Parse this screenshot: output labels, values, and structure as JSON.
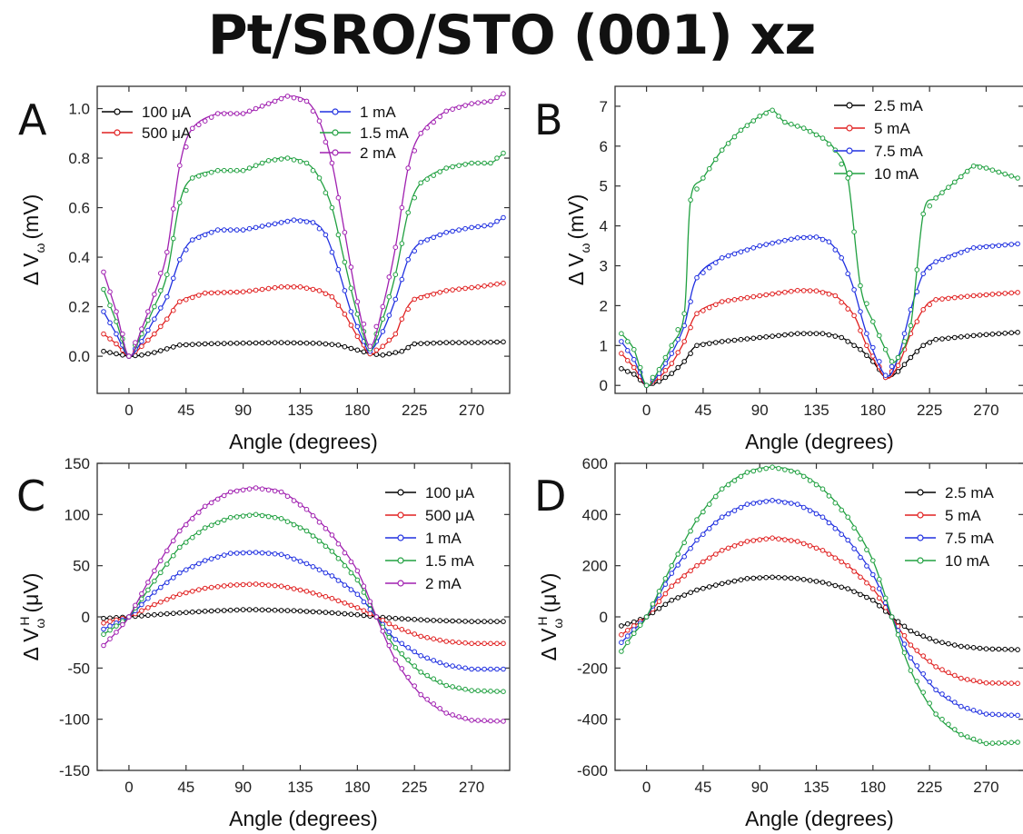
{
  "title": "Pt/SRO/STO (001) xz",
  "chart_data": [
    {
      "panel": "A",
      "type": "line",
      "xlabel": "Angle (degrees)",
      "ylabel": "Δ V_ω (mV)",
      "xlim": [
        -25,
        300
      ],
      "ylim": [
        -0.15,
        1.09
      ],
      "xticks": [
        0,
        45,
        90,
        135,
        180,
        225,
        270
      ],
      "yticks": [
        0.0,
        0.2,
        0.4,
        0.6,
        0.8,
        1.0
      ],
      "ytick_labels": [
        "0.0",
        "0.2",
        "0.4",
        "0.6",
        "0.8",
        "1.0"
      ],
      "legend": "top",
      "series": [
        {
          "name": "100 μA",
          "color": "#000000",
          "x": [
            -20,
            0,
            10,
            20,
            30,
            40,
            60,
            90,
            120,
            150,
            165,
            180,
            190,
            200,
            215,
            225,
            250,
            275,
            295
          ],
          "y": [
            0.02,
            0.0,
            0.005,
            0.015,
            0.03,
            0.045,
            0.05,
            0.053,
            0.055,
            0.052,
            0.045,
            0.025,
            0.01,
            0.005,
            0.02,
            0.05,
            0.055,
            0.055,
            0.058
          ]
        },
        {
          "name": "500 μA",
          "color": "#e02020",
          "x": [
            -20,
            -10,
            0,
            10,
            20,
            30,
            40,
            60,
            90,
            120,
            135,
            150,
            160,
            170,
            180,
            190,
            200,
            210,
            215,
            225,
            250,
            275,
            295
          ],
          "y": [
            0.09,
            0.05,
            0.0,
            0.04,
            0.09,
            0.15,
            0.22,
            0.255,
            0.26,
            0.28,
            0.28,
            0.265,
            0.24,
            0.17,
            0.08,
            0.01,
            0.04,
            0.09,
            0.15,
            0.23,
            0.265,
            0.28,
            0.295
          ]
        },
        {
          "name": "1 mA",
          "color": "#2030e0",
          "x": [
            -20,
            -10,
            0,
            10,
            20,
            30,
            40,
            50,
            70,
            90,
            110,
            130,
            145,
            155,
            165,
            175,
            185,
            190,
            200,
            210,
            220,
            230,
            250,
            270,
            285,
            295
          ],
          "y": [
            0.18,
            0.09,
            0.0,
            0.06,
            0.15,
            0.24,
            0.39,
            0.47,
            0.51,
            0.51,
            0.53,
            0.55,
            0.54,
            0.49,
            0.35,
            0.18,
            0.06,
            0.02,
            0.1,
            0.23,
            0.39,
            0.46,
            0.5,
            0.52,
            0.53,
            0.56
          ]
        },
        {
          "name": "1.5 mA",
          "color": "#20a040",
          "x": [
            -20,
            -10,
            0,
            10,
            20,
            30,
            40,
            50,
            70,
            90,
            110,
            125,
            140,
            150,
            160,
            170,
            180,
            190,
            200,
            210,
            220,
            230,
            250,
            270,
            285,
            295
          ],
          "y": [
            0.27,
            0.14,
            0.0,
            0.09,
            0.2,
            0.33,
            0.62,
            0.72,
            0.75,
            0.75,
            0.79,
            0.8,
            0.78,
            0.72,
            0.6,
            0.38,
            0.17,
            0.03,
            0.15,
            0.33,
            0.58,
            0.7,
            0.76,
            0.78,
            0.78,
            0.82
          ]
        },
        {
          "name": "2 mA",
          "color": "#a020b0",
          "x": [
            -20,
            -10,
            0,
            10,
            20,
            30,
            40,
            50,
            70,
            90,
            110,
            125,
            140,
            150,
            160,
            170,
            180,
            190,
            200,
            210,
            220,
            230,
            250,
            270,
            285,
            295
          ],
          "y": [
            0.34,
            0.18,
            0.0,
            0.11,
            0.25,
            0.42,
            0.77,
            0.92,
            0.98,
            0.98,
            1.02,
            1.05,
            1.03,
            0.95,
            0.78,
            0.5,
            0.22,
            0.04,
            0.2,
            0.44,
            0.76,
            0.9,
            0.99,
            1.02,
            1.03,
            1.06
          ]
        }
      ]
    },
    {
      "panel": "B",
      "type": "line",
      "xlabel": "Angle (degrees)",
      "ylabel": "Δ V_ω (mV)",
      "xlim": [
        -25,
        300
      ],
      "ylim": [
        -0.2,
        7.5
      ],
      "xticks": [
        0,
        45,
        90,
        135,
        180,
        225,
        270
      ],
      "yticks": [
        0,
        1,
        2,
        3,
        4,
        5,
        6,
        7
      ],
      "ytick_labels": [
        "0",
        "1",
        "2",
        "3",
        "4",
        "5",
        "6",
        "7"
      ],
      "legend": "top-right",
      "series": [
        {
          "name": "2.5 mA",
          "color": "#000000",
          "x": [
            -20,
            -10,
            0,
            10,
            20,
            30,
            40,
            60,
            90,
            120,
            140,
            155,
            170,
            180,
            190,
            200,
            210,
            220,
            230,
            260,
            295
          ],
          "y": [
            0.42,
            0.28,
            0.0,
            0.1,
            0.3,
            0.6,
            1.0,
            1.1,
            1.2,
            1.3,
            1.3,
            1.2,
            0.9,
            0.6,
            0.2,
            0.35,
            0.7,
            1.0,
            1.15,
            1.25,
            1.33
          ]
        },
        {
          "name": "5 mA",
          "color": "#e02020",
          "x": [
            -20,
            -10,
            0,
            10,
            20,
            30,
            40,
            60,
            90,
            120,
            135,
            150,
            165,
            175,
            190,
            200,
            210,
            220,
            230,
            260,
            295
          ],
          "y": [
            0.8,
            0.45,
            0.0,
            0.2,
            0.55,
            1.1,
            1.8,
            2.1,
            2.25,
            2.38,
            2.37,
            2.25,
            1.75,
            1.0,
            0.2,
            0.5,
            1.3,
            1.9,
            2.15,
            2.25,
            2.33
          ]
        },
        {
          "name": "7.5 mA",
          "color": "#2030e0",
          "x": [
            -20,
            -10,
            0,
            10,
            20,
            30,
            40,
            60,
            90,
            120,
            135,
            145,
            155,
            165,
            175,
            190,
            200,
            210,
            220,
            230,
            260,
            295
          ],
          "y": [
            1.1,
            0.65,
            0.0,
            0.3,
            0.8,
            1.5,
            2.7,
            3.2,
            3.5,
            3.7,
            3.72,
            3.6,
            3.2,
            2.4,
            1.3,
            0.25,
            0.7,
            1.9,
            2.8,
            3.1,
            3.45,
            3.55
          ]
        },
        {
          "name": "10 mA",
          "color": "#20a040",
          "x": [
            -20,
            -10,
            0,
            10,
            20,
            30,
            35,
            45,
            60,
            75,
            90,
            100,
            110,
            125,
            140,
            150,
            160,
            170,
            180,
            190,
            195,
            200,
            210,
            220,
            230,
            245,
            260,
            270,
            285,
            295
          ],
          "y": [
            1.3,
            0.9,
            0.0,
            0.4,
            1.0,
            1.8,
            4.65,
            5.2,
            5.9,
            6.4,
            6.75,
            6.9,
            6.6,
            6.45,
            6.2,
            5.9,
            5.2,
            2.5,
            1.6,
            0.9,
            0.6,
            0.7,
            1.5,
            4.3,
            4.7,
            5.1,
            5.5,
            5.45,
            5.3,
            5.2
          ]
        }
      ]
    },
    {
      "panel": "C",
      "type": "line",
      "xlabel": "Angle (degrees)",
      "ylabel": "Δ V_ω^H (μV)",
      "xlim": [
        -25,
        300
      ],
      "ylim": [
        -150,
        150
      ],
      "xticks": [
        0,
        45,
        90,
        135,
        180,
        225,
        270
      ],
      "yticks": [
        -150,
        -100,
        -50,
        0,
        50,
        100,
        150
      ],
      "ytick_labels": [
        "-150",
        "-100",
        "-50",
        "0",
        "50",
        "100",
        "150"
      ],
      "legend": "top-right",
      "series": [
        {
          "name": "100 μA",
          "color": "#000000",
          "x": [
            -20,
            0,
            30,
            60,
            90,
            100,
            130,
            160,
            180,
            195,
            210,
            240,
            270,
            295
          ],
          "y": [
            -1.5,
            0,
            3,
            5.5,
            7,
            7,
            6,
            4,
            2,
            0,
            -1.5,
            -3.5,
            -4.5,
            -4.5
          ]
        },
        {
          "name": "500 μA",
          "color": "#e02020",
          "x": [
            -20,
            -10,
            0,
            20,
            40,
            60,
            80,
            100,
            120,
            140,
            160,
            180,
            195,
            210,
            230,
            250,
            270,
            295
          ],
          "y": [
            -6,
            -3,
            0,
            12,
            22,
            28,
            31,
            32,
            30,
            25,
            18,
            9,
            0,
            -10,
            -19,
            -24,
            -26,
            -26
          ]
        },
        {
          "name": "1 mA",
          "color": "#2030e0",
          "x": [
            -20,
            -10,
            0,
            20,
            40,
            60,
            80,
            100,
            120,
            140,
            160,
            180,
            195,
            210,
            230,
            250,
            270,
            295
          ],
          "y": [
            -12,
            -6,
            0,
            24,
            43,
            55,
            62,
            63,
            61,
            52,
            40,
            22,
            0,
            -22,
            -38,
            -47,
            -51,
            -51
          ]
        },
        {
          "name": "1.5 mA",
          "color": "#20a040",
          "x": [
            -20,
            -10,
            0,
            20,
            40,
            60,
            80,
            100,
            120,
            140,
            160,
            180,
            195,
            210,
            230,
            250,
            270,
            295
          ],
          "y": [
            -17,
            -9,
            0,
            35,
            68,
            87,
            97,
            100,
            96,
            84,
            64,
            36,
            0,
            -30,
            -54,
            -67,
            -72,
            -73
          ]
        },
        {
          "name": "2 mA",
          "color": "#a020b0",
          "x": [
            -20,
            -10,
            0,
            20,
            40,
            60,
            80,
            100,
            120,
            140,
            160,
            180,
            195,
            210,
            230,
            250,
            270,
            295
          ],
          "y": [
            -28,
            -15,
            0,
            45,
            84,
            108,
            122,
            126,
            122,
            105,
            80,
            45,
            0,
            -42,
            -76,
            -94,
            -101,
            -102
          ]
        }
      ]
    },
    {
      "panel": "D",
      "type": "line",
      "xlabel": "Angle (degrees)",
      "ylabel": "Δ V_ω^H (μV)",
      "xlim": [
        -25,
        300
      ],
      "ylim": [
        -600,
        600
      ],
      "xticks": [
        0,
        45,
        90,
        135,
        180,
        225,
        270
      ],
      "yticks": [
        -600,
        -400,
        -200,
        0,
        200,
        400,
        600
      ],
      "ytick_labels": [
        "-600",
        "-400",
        "-200",
        "0",
        "200",
        "400",
        "600"
      ],
      "legend": "top-right",
      "series": [
        {
          "name": "2.5 mA",
          "color": "#000000",
          "x": [
            -20,
            -10,
            0,
            20,
            40,
            60,
            80,
            100,
            120,
            140,
            160,
            180,
            195,
            210,
            230,
            250,
            270,
            295
          ],
          "y": [
            -35,
            -20,
            0,
            65,
            105,
            130,
            150,
            155,
            150,
            135,
            110,
            65,
            0,
            -55,
            -95,
            -115,
            -125,
            -128
          ]
        },
        {
          "name": "5 mA",
          "color": "#e02020",
          "x": [
            -20,
            -10,
            0,
            20,
            40,
            60,
            80,
            100,
            120,
            140,
            160,
            180,
            195,
            210,
            230,
            250,
            270,
            295
          ],
          "y": [
            -70,
            -35,
            0,
            120,
            200,
            260,
            295,
            308,
            295,
            260,
            200,
            110,
            0,
            -110,
            -195,
            -240,
            -258,
            -260
          ]
        },
        {
          "name": "7.5 mA",
          "color": "#2030e0",
          "x": [
            -20,
            -10,
            0,
            20,
            40,
            60,
            80,
            100,
            120,
            140,
            160,
            180,
            195,
            210,
            230,
            250,
            270,
            295
          ],
          "y": [
            -100,
            -50,
            0,
            170,
            300,
            390,
            440,
            455,
            440,
            390,
            300,
            165,
            0,
            -160,
            -285,
            -350,
            -380,
            -385
          ]
        },
        {
          "name": "10 mA",
          "color": "#20a040",
          "x": [
            -20,
            -10,
            0,
            20,
            40,
            60,
            80,
            100,
            120,
            140,
            160,
            180,
            195,
            210,
            230,
            250,
            270,
            295
          ],
          "y": [
            -135,
            -65,
            0,
            200,
            380,
            500,
            565,
            585,
            565,
            500,
            390,
            220,
            0,
            -210,
            -380,
            -460,
            -495,
            -490
          ]
        }
      ]
    }
  ],
  "panels_text": {
    "A": {
      "letter": "A",
      "ylabel_main": "Δ V",
      "ylabel_sub": "ω",
      "ylabel_sup": "",
      "ylabel_unit": "(mV)",
      "xlabel": "Angle (degrees)"
    },
    "B": {
      "letter": "B",
      "ylabel_main": "Δ V",
      "ylabel_sub": "ω",
      "ylabel_sup": "",
      "ylabel_unit": "(mV)",
      "xlabel": "Angle (degrees)"
    },
    "C": {
      "letter": "C",
      "ylabel_main": "Δ V",
      "ylabel_sub": "ω",
      "ylabel_sup": "H",
      "ylabel_unit": "(μV)",
      "xlabel": "Angle (degrees)"
    },
    "D": {
      "letter": "D",
      "ylabel_main": "Δ V",
      "ylabel_sub": "ω",
      "ylabel_sup": "H",
      "ylabel_unit": "(μV)",
      "xlabel": "Angle (degrees)"
    }
  }
}
